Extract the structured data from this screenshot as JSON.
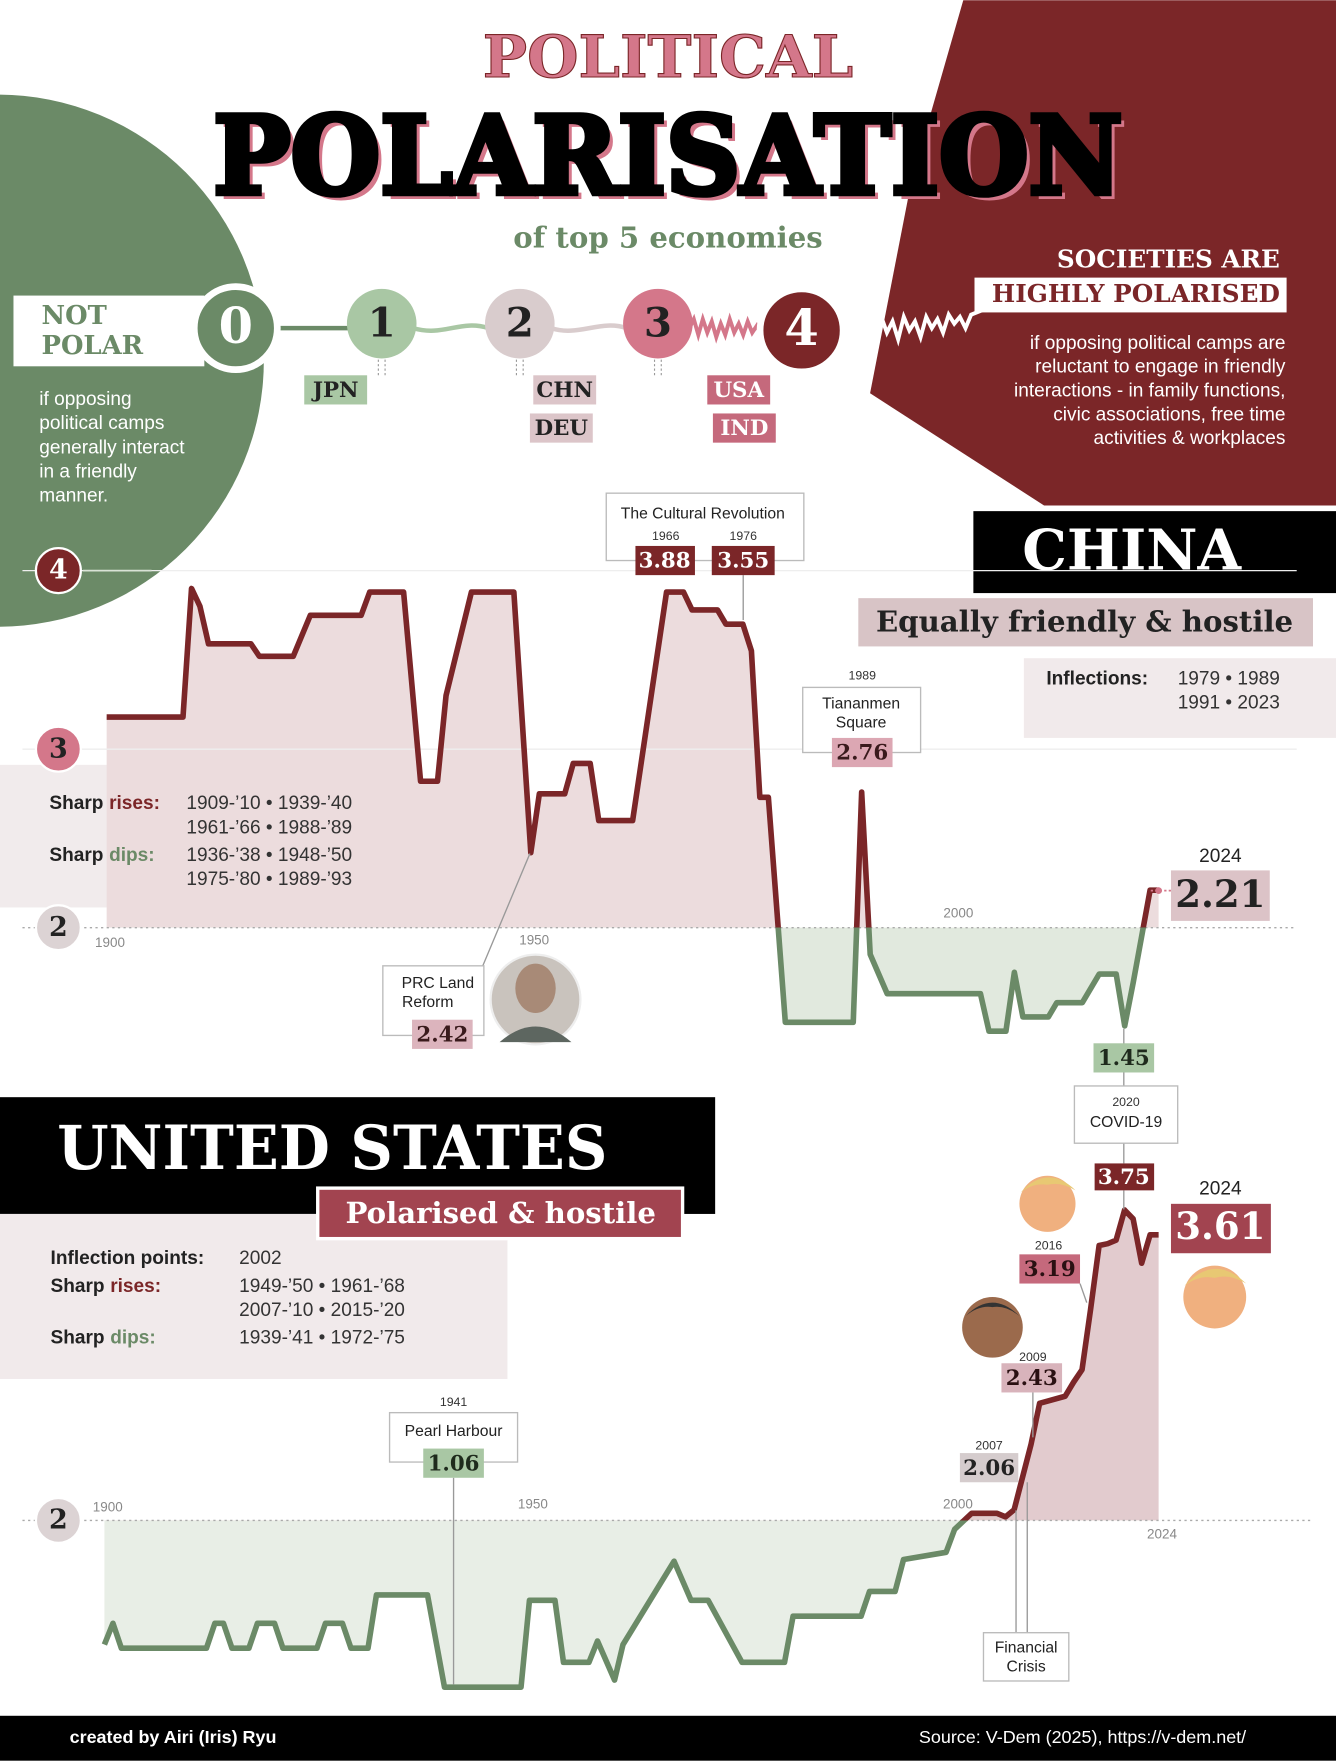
{
  "header": {
    "title_top": "POLITICAL",
    "title_main": "POLARISATION",
    "subtitle": "of top 5 economies"
  },
  "scale": {
    "low_label": [
      "NOT",
      "POLAR"
    ],
    "levels": [
      0,
      1,
      2,
      3,
      4
    ],
    "countries": [
      {
        "code": "JPN",
        "level": 1
      },
      {
        "code": "CHN",
        "level": 2
      },
      {
        "code": "DEU",
        "level": 2
      },
      {
        "code": "USA",
        "level": 3
      },
      {
        "code": "IND",
        "level": 3
      }
    ],
    "high_label": [
      "SOCIETIES ARE",
      "HIGHLY POLARISED"
    ],
    "low_desc": [
      "if opposing",
      "political camps",
      "generally interact",
      "in a friendly",
      "manner."
    ],
    "high_desc": [
      "if opposing political camps are",
      "reluctant to engage in friendly",
      "interactions - in family functions,",
      "civic associations, free time",
      "activities & workplaces"
    ]
  },
  "chart_data": [
    {
      "type": "line",
      "title": "CHINA",
      "subtitle": "Equally friendly & hostile",
      "x": [
        1900,
        1909,
        1910,
        1911,
        1912,
        1917,
        1918,
        1922,
        1924,
        1930,
        1931,
        1935,
        1937,
        1939,
        1940,
        1943,
        1948,
        1950,
        1951,
        1954,
        1955,
        1957,
        1958,
        1962,
        1966,
        1968,
        1969,
        1972,
        1973,
        1975,
        1976,
        1977,
        1978,
        1980,
        1988,
        1989,
        1990,
        1992,
        2003,
        2004,
        2006,
        2007,
        2008,
        2011,
        2012,
        2015,
        2017,
        2019,
        2020,
        2021,
        2023,
        2024
      ],
      "values": [
        3.18,
        3.18,
        3.9,
        3.8,
        3.59,
        3.59,
        3.52,
        3.52,
        3.75,
        3.75,
        3.88,
        3.88,
        2.82,
        2.82,
        3.3,
        3.88,
        3.88,
        2.42,
        2.75,
        2.75,
        2.92,
        2.92,
        2.6,
        2.6,
        3.88,
        3.88,
        3.78,
        3.78,
        3.7,
        3.7,
        3.55,
        2.73,
        2.73,
        1.47,
        1.47,
        2.76,
        1.85,
        1.63,
        1.63,
        1.42,
        1.42,
        1.75,
        1.5,
        1.5,
        1.58,
        1.58,
        1.74,
        1.74,
        1.45,
        1.69,
        2.21,
        2.21
      ],
      "color_above": "#7b2628",
      "color_below": "#6b8a67",
      "fill_above": "#ecdcdd",
      "fill_below": "#e1e9de",
      "xlim": [
        1900,
        2024
      ],
      "xticks": [
        1900,
        1950,
        2000
      ],
      "ylim": [
        1,
        4
      ],
      "yticks": [
        2,
        3,
        4
      ],
      "inflections": {
        "label": "Inflections:",
        "lines": [
          "1979 • 1989",
          "1991 • 2023"
        ]
      },
      "rises": {
        "prefix": "Sharp",
        "key": "rises:",
        "lines": [
          "1909-’10 • 1939-’40",
          "1961-’66 • 1988-’89"
        ]
      },
      "dips": {
        "prefix": "Sharp",
        "key": "dips:",
        "lines": [
          "1936-’38 • 1948-’50",
          "1975-’80 • 1989-’93"
        ]
      },
      "annotations": [
        {
          "title": "The Cultural Revolution",
          "points": [
            {
              "year": 1966,
              "value": 3.88
            },
            {
              "year": 1976,
              "value": 3.55
            }
          ]
        },
        {
          "year": 1989,
          "title": [
            "Tiananmen",
            "Square"
          ],
          "value": 2.76
        },
        {
          "title": [
            "PRC Land",
            "Reform"
          ],
          "value": 2.42
        },
        {
          "year": 2024,
          "value": 2.21
        },
        {
          "value": 1.45
        },
        {
          "year": 2020,
          "title": "COVID-19"
        }
      ]
    },
    {
      "type": "line",
      "title": "UNITED STATES",
      "subtitle": "Polarised & hostile",
      "x": [
        1900,
        1901,
        1902,
        1912,
        1913,
        1914,
        1915,
        1917,
        1918,
        1920,
        1921,
        1925,
        1926,
        1928,
        1929,
        1931,
        1932,
        1938,
        1940,
        1948,
        1949,
        1950,
        1953,
        1954,
        1957,
        1958,
        1960,
        1961,
        1967,
        1969,
        1971,
        1975,
        1980,
        1981,
        1989,
        1990,
        1993,
        1994,
        1999,
        2000,
        2002,
        2005,
        2006,
        2007,
        2009,
        2010,
        2013,
        2014,
        2015,
        2016,
        2017,
        2018,
        2019,
        2020,
        2021,
        2022,
        2023,
        2024
      ],
      "values": [
        1.3,
        1.42,
        1.28,
        1.28,
        1.42,
        1.42,
        1.28,
        1.28,
        1.42,
        1.42,
        1.28,
        1.28,
        1.42,
        1.42,
        1.28,
        1.28,
        1.58,
        1.58,
        1.06,
        1.06,
        1.06,
        1.55,
        1.55,
        1.2,
        1.2,
        1.32,
        1.1,
        1.3,
        1.77,
        1.55,
        1.55,
        1.2,
        1.2,
        1.46,
        1.46,
        1.6,
        1.6,
        1.78,
        1.82,
        1.95,
        2.04,
        2.04,
        2.02,
        2.06,
        2.43,
        2.66,
        2.7,
        2.78,
        2.85,
        3.19,
        3.55,
        3.56,
        3.58,
        3.75,
        3.7,
        3.45,
        3.61,
        3.61
      ],
      "color_above": "#7b2628",
      "color_below": "#6b8a67",
      "fill_above": "#e2cbce",
      "fill_below": "#e8eee6",
      "xlim": [
        1900,
        2024
      ],
      "xticks": [
        1900,
        1950,
        2000,
        2024
      ],
      "ylim": [
        1,
        4
      ],
      "yticks": [
        2
      ],
      "inflections": {
        "label": "Inflection points:",
        "lines": [
          "2002"
        ]
      },
      "rises": {
        "prefix": "Sharp",
        "key": "rises:",
        "lines": [
          "1949-’50 • 1961-’68",
          "2007-’10 • 2015-’20"
        ]
      },
      "dips": {
        "prefix": "Sharp",
        "key": "dips:",
        "lines": [
          "1939-’41 • 1972-’75"
        ]
      },
      "annotations": [
        {
          "value": 3.75
        },
        {
          "year": 2024,
          "value": 3.61
        },
        {
          "year": 2016,
          "value": 3.19
        },
        {
          "year": 2009,
          "value": 2.43
        },
        {
          "year": 2007,
          "value": 2.06
        },
        {
          "title": [
            "Financial",
            "Crisis"
          ]
        },
        {
          "year": 1941,
          "title": "Pearl Harbour",
          "value": 1.06
        }
      ]
    }
  ],
  "footer": {
    "credit": "created by Airi (Iris) Ryu",
    "source": "Source:  V-Dem (2025), https://v-dem.net/"
  }
}
